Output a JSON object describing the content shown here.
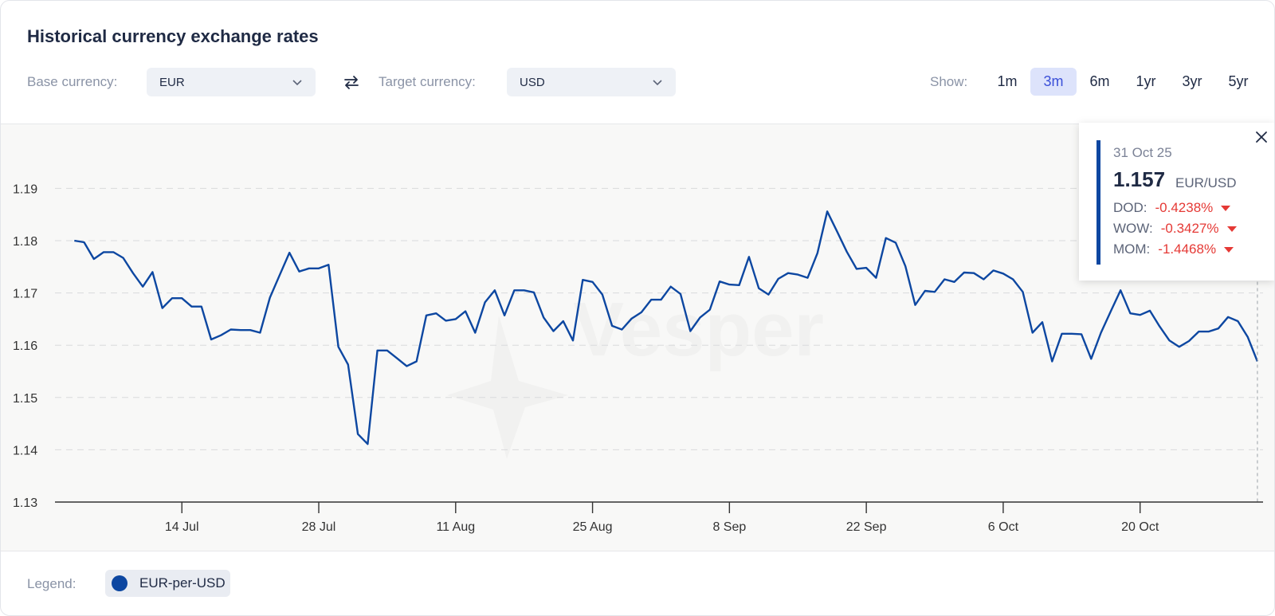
{
  "header": {
    "title": "Historical currency exchange rates",
    "base_label": "Base currency:",
    "base_value": "EUR",
    "target_label": "Target currency:",
    "target_value": "USD",
    "show_label": "Show:",
    "periods": [
      "1m",
      "3m",
      "6m",
      "1yr",
      "3yr",
      "5yr"
    ],
    "active_period": "3m"
  },
  "tooltip": {
    "date": "31 Oct 25",
    "value": "1.157",
    "pair": "EUR/USD",
    "rows": [
      {
        "label": "DOD:",
        "value": "-0.4238%"
      },
      {
        "label": "WOW:",
        "value": "-0.3427%"
      },
      {
        "label": "MOM:",
        "value": "-1.4468%"
      }
    ]
  },
  "legend": {
    "label": "Legend:",
    "series_name": "EUR-per-USD"
  },
  "colors": {
    "line": "#0d47a1",
    "tooltip_accent": "#0d47a1",
    "negative": "#e53935",
    "active_period_bg": "#dde3fb"
  },
  "chart_data": {
    "type": "line",
    "ylim": [
      1.13,
      1.195
    ],
    "yticks": [
      "1.13",
      "1.14",
      "1.15",
      "1.16",
      "1.17",
      "1.18",
      "1.19"
    ],
    "grid": true,
    "xlim": [
      "2025-07-02",
      "2025-11-01"
    ],
    "xticks": [
      {
        "date": "2025-07-14",
        "label": "14 Jul"
      },
      {
        "date": "2025-07-28",
        "label": "28 Jul"
      },
      {
        "date": "2025-08-11",
        "label": "11 Aug"
      },
      {
        "date": "2025-08-25",
        "label": "25 Aug"
      },
      {
        "date": "2025-09-08",
        "label": "8 Sep"
      },
      {
        "date": "2025-09-22",
        "label": "22 Sep"
      },
      {
        "date": "2025-10-06",
        "label": "6 Oct"
      },
      {
        "date": "2025-10-20",
        "label": "20 Oct"
      }
    ],
    "series": [
      {
        "name": "EUR-per-USD",
        "points": [
          [
            "2025-07-03",
            1.18
          ],
          [
            "2025-07-04",
            1.1797
          ],
          [
            "2025-07-05",
            1.1765
          ],
          [
            "2025-07-06",
            1.1778
          ],
          [
            "2025-07-07",
            1.1778
          ],
          [
            "2025-07-08",
            1.1767
          ],
          [
            "2025-07-09",
            1.1738
          ],
          [
            "2025-07-10",
            1.1712
          ],
          [
            "2025-07-11",
            1.174
          ],
          [
            "2025-07-12",
            1.1671
          ],
          [
            "2025-07-13",
            1.169
          ],
          [
            "2025-07-14",
            1.169
          ],
          [
            "2025-07-15",
            1.1674
          ],
          [
            "2025-07-16",
            1.1674
          ],
          [
            "2025-07-17",
            1.1611
          ],
          [
            "2025-07-18",
            1.1619
          ],
          [
            "2025-07-19",
            1.163
          ],
          [
            "2025-07-20",
            1.1629
          ],
          [
            "2025-07-21",
            1.1629
          ],
          [
            "2025-07-22",
            1.1624
          ],
          [
            "2025-07-23",
            1.1691
          ],
          [
            "2025-07-24",
            1.1734
          ],
          [
            "2025-07-25",
            1.1777
          ],
          [
            "2025-07-26",
            1.1741
          ],
          [
            "2025-07-27",
            1.1747
          ],
          [
            "2025-07-28",
            1.1747
          ],
          [
            "2025-07-29",
            1.1754
          ],
          [
            "2025-07-30",
            1.1597
          ],
          [
            "2025-07-31",
            1.1563
          ],
          [
            "2025-08-01",
            1.143
          ],
          [
            "2025-08-02",
            1.1411
          ],
          [
            "2025-08-03",
            1.159
          ],
          [
            "2025-08-04",
            1.159
          ],
          [
            "2025-08-05",
            1.1575
          ],
          [
            "2025-08-06",
            1.156
          ],
          [
            "2025-08-07",
            1.1569
          ],
          [
            "2025-08-08",
            1.1657
          ],
          [
            "2025-08-09",
            1.1661
          ],
          [
            "2025-08-10",
            1.1647
          ],
          [
            "2025-08-11",
            1.165
          ],
          [
            "2025-08-12",
            1.1665
          ],
          [
            "2025-08-13",
            1.1624
          ],
          [
            "2025-08-14",
            1.1682
          ],
          [
            "2025-08-15",
            1.1705
          ],
          [
            "2025-08-16",
            1.1657
          ],
          [
            "2025-08-17",
            1.1705
          ],
          [
            "2025-08-18",
            1.1705
          ],
          [
            "2025-08-19",
            1.1701
          ],
          [
            "2025-08-20",
            1.1653
          ],
          [
            "2025-08-21",
            1.1627
          ],
          [
            "2025-08-22",
            1.1646
          ],
          [
            "2025-08-23",
            1.1609
          ],
          [
            "2025-08-24",
            1.1725
          ],
          [
            "2025-08-25",
            1.1721
          ],
          [
            "2025-08-26",
            1.1697
          ],
          [
            "2025-08-27",
            1.1637
          ],
          [
            "2025-08-28",
            1.163
          ],
          [
            "2025-08-29",
            1.1651
          ],
          [
            "2025-08-30",
            1.1663
          ],
          [
            "2025-08-31",
            1.1687
          ],
          [
            "2025-09-01",
            1.1687
          ],
          [
            "2025-09-02",
            1.1712
          ],
          [
            "2025-09-03",
            1.1698
          ],
          [
            "2025-09-04",
            1.1627
          ],
          [
            "2025-09-05",
            1.1653
          ],
          [
            "2025-09-06",
            1.1668
          ],
          [
            "2025-09-07",
            1.1722
          ],
          [
            "2025-09-08",
            1.1716
          ],
          [
            "2025-09-09",
            1.1715
          ],
          [
            "2025-09-10",
            1.1769
          ],
          [
            "2025-09-11",
            1.1709
          ],
          [
            "2025-09-12",
            1.1697
          ],
          [
            "2025-09-13",
            1.1727
          ],
          [
            "2025-09-14",
            1.1738
          ],
          [
            "2025-09-15",
            1.1735
          ],
          [
            "2025-09-16",
            1.1729
          ],
          [
            "2025-09-17",
            1.1776
          ],
          [
            "2025-09-18",
            1.1856
          ],
          [
            "2025-09-19",
            1.1818
          ],
          [
            "2025-09-20",
            1.1779
          ],
          [
            "2025-09-21",
            1.1746
          ],
          [
            "2025-09-22",
            1.1748
          ],
          [
            "2025-09-23",
            1.1729
          ],
          [
            "2025-09-24",
            1.1805
          ],
          [
            "2025-09-25",
            1.1796
          ],
          [
            "2025-09-26",
            1.1751
          ],
          [
            "2025-09-27",
            1.1677
          ],
          [
            "2025-09-28",
            1.1704
          ],
          [
            "2025-09-29",
            1.1702
          ],
          [
            "2025-09-30",
            1.1726
          ],
          [
            "2025-10-01",
            1.1721
          ],
          [
            "2025-10-02",
            1.1739
          ],
          [
            "2025-10-03",
            1.1738
          ],
          [
            "2025-10-04",
            1.1726
          ],
          [
            "2025-10-05",
            1.1743
          ],
          [
            "2025-10-06",
            1.1737
          ],
          [
            "2025-10-07",
            1.1726
          ],
          [
            "2025-10-08",
            1.1702
          ],
          [
            "2025-10-09",
            1.1624
          ],
          [
            "2025-10-10",
            1.1644
          ],
          [
            "2025-10-11",
            1.1569
          ],
          [
            "2025-10-12",
            1.1622
          ],
          [
            "2025-10-13",
            1.1622
          ],
          [
            "2025-10-14",
            1.1621
          ],
          [
            "2025-10-15",
            1.1574
          ],
          [
            "2025-10-16",
            1.1624
          ],
          [
            "2025-10-17",
            1.1665
          ],
          [
            "2025-10-18",
            1.1705
          ],
          [
            "2025-10-19",
            1.1661
          ],
          [
            "2025-10-20",
            1.1658
          ],
          [
            "2025-10-21",
            1.1666
          ],
          [
            "2025-10-22",
            1.1636
          ],
          [
            "2025-10-23",
            1.1609
          ],
          [
            "2025-10-24",
            1.1597
          ],
          [
            "2025-10-25",
            1.1608
          ],
          [
            "2025-10-26",
            1.1626
          ],
          [
            "2025-10-27",
            1.1626
          ],
          [
            "2025-10-28",
            1.1632
          ],
          [
            "2025-10-29",
            1.1654
          ],
          [
            "2025-10-30",
            1.1646
          ],
          [
            "2025-10-31",
            1.1616
          ],
          [
            "2025-11-01",
            1.1569
          ]
        ]
      }
    ]
  }
}
